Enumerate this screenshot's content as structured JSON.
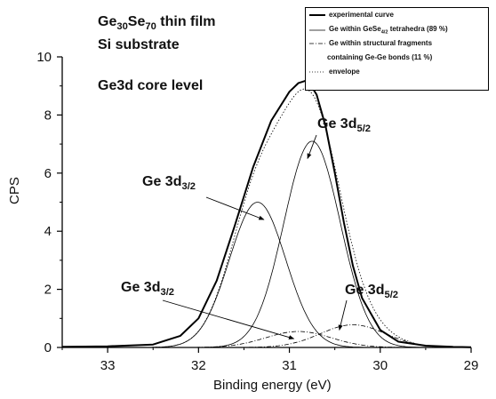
{
  "chart_data": {
    "type": "line",
    "title_parts": {
      "pre": "Ge",
      "sub1": "30",
      "mid": "Se",
      "sub2": "70",
      "post": " thin film"
    },
    "subtitle_lines": [
      "Si substrate",
      "Ge3d core level"
    ],
    "xlabel": "Binding energy (eV)",
    "ylabel": "CPS",
    "xlim": [
      33.5,
      29
    ],
    "ylim": [
      0,
      10
    ],
    "x_reversed": true,
    "x_ticks": [
      "33",
      "32",
      "31",
      "30",
      "29"
    ],
    "y_ticks": [
      "0",
      "2",
      "4",
      "6",
      "8",
      "10"
    ],
    "legend": [
      {
        "text": "experimental curve",
        "style": "solid-thick"
      },
      {
        "text_pre": "Ge within GeSe",
        "text_sub": "4/2",
        "text_post": "  tetrahedra (89 %)",
        "style": "solid"
      },
      {
        "text": "Ge within structural fragments",
        "text2": "containing Ge-Ge bonds (11 %)",
        "style": "dashdot"
      },
      {
        "text": "envelope",
        "style": "dotted"
      }
    ],
    "annotations": [
      {
        "base": "Ge 3d",
        "sub": "5/2"
      },
      {
        "base": "Ge 3d",
        "sub": "3/2"
      },
      {
        "base": "Ge 3d",
        "sub": "3/2"
      },
      {
        "base": "Ge 3d",
        "sub": "5/2"
      }
    ],
    "series": [
      {
        "style": "solid-thick",
        "x": [
          33.5,
          33.0,
          32.5,
          32.2,
          32.0,
          31.8,
          31.6,
          31.4,
          31.2,
          31.0,
          30.9,
          30.8,
          30.7,
          30.6,
          30.5,
          30.4,
          30.3,
          30.2,
          30.0,
          29.8,
          29.5,
          29.2,
          29.0
        ],
        "y": [
          0.02,
          0.04,
          0.1,
          0.4,
          1.0,
          2.3,
          4.2,
          6.2,
          7.8,
          8.8,
          9.1,
          9.2,
          8.7,
          7.6,
          6.0,
          4.3,
          2.8,
          1.7,
          0.6,
          0.2,
          0.06,
          0.02,
          0.01
        ]
      },
      {
        "style": "solid",
        "type": "gaussian",
        "center": 31.35,
        "amp": 5.0,
        "sigma": 0.31
      },
      {
        "style": "solid",
        "type": "gaussian",
        "center": 30.75,
        "amp": 7.1,
        "sigma": 0.31
      },
      {
        "style": "dashdot",
        "type": "gaussian",
        "center": 30.9,
        "amp": 0.55,
        "sigma": 0.36
      },
      {
        "style": "dashdot",
        "type": "gaussian",
        "center": 30.3,
        "amp": 0.78,
        "sigma": 0.36
      },
      {
        "style": "dotted",
        "type": "envelope"
      }
    ]
  }
}
